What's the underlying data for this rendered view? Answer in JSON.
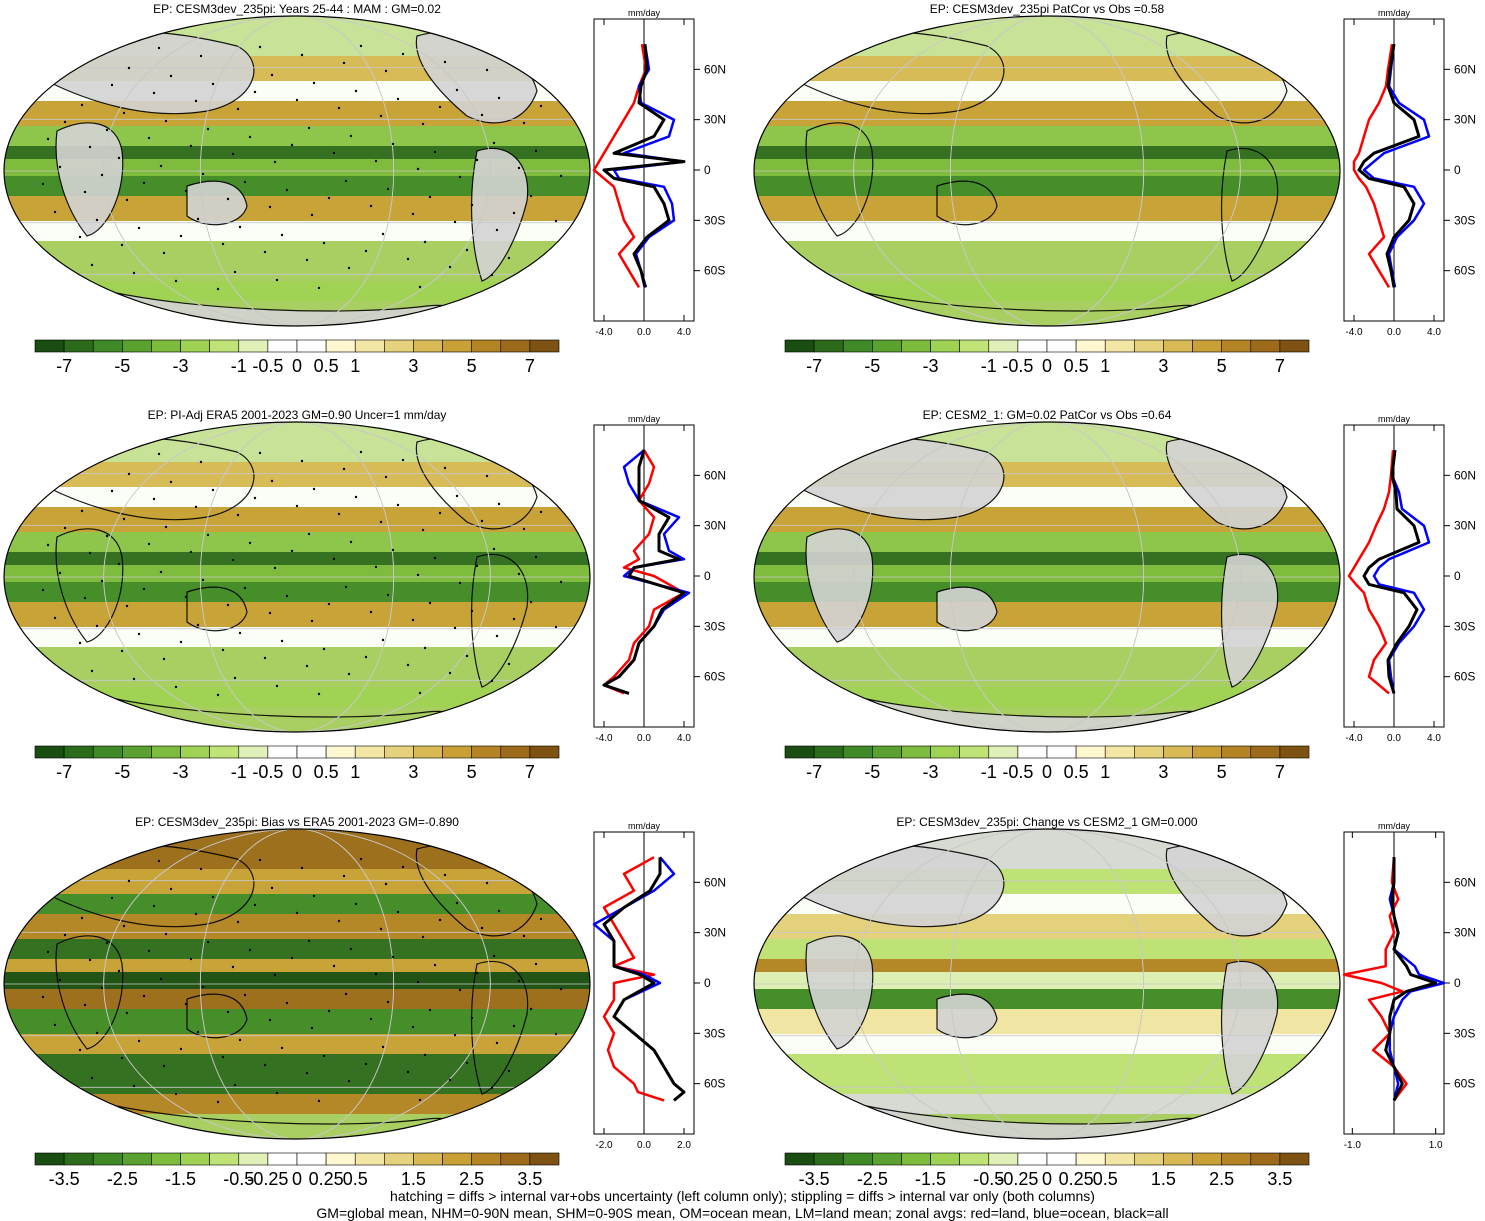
{
  "legend_colors": {
    "land": "#ff0000",
    "ocean": "#0000ff",
    "all": "#000000"
  },
  "zonal_axis": {
    "unit_label": "mm/day",
    "lat_ticks": [
      "60N",
      "30N",
      "0",
      "30S",
      "60S"
    ],
    "lat_values": [
      60,
      30,
      0,
      -30,
      -60
    ]
  },
  "colorbars": {
    "precip": {
      "labels": [
        "-7",
        "-5",
        "-3",
        "-1",
        "-0.5",
        "0",
        "0.5",
        "1",
        "3",
        "5",
        "7"
      ],
      "colors": [
        "#1a4d12",
        "#2d6b1c",
        "#3f8a26",
        "#5aa12f",
        "#7cbb3c",
        "#9fd253",
        "#c0e378",
        "#e0f0b8",
        "#ffffff",
        "#ffffff",
        "#fff7d0",
        "#f3e6a5",
        "#e6d17c",
        "#d8b955",
        "#c9a035",
        "#b48324",
        "#9c6a1a",
        "#7d5212"
      ]
    },
    "bias": {
      "labels": [
        "-3.5",
        "-2.5",
        "-1.5",
        "-0.5",
        "-0.25",
        "0",
        "0.25",
        "0.5",
        "1.5",
        "2.5",
        "3.5"
      ],
      "colors": [
        "#1a4d12",
        "#2d6b1c",
        "#3f8a26",
        "#5aa12f",
        "#7cbb3c",
        "#9fd253",
        "#c0e378",
        "#e0f0b8",
        "#ffffff",
        "#ffffff",
        "#fff7d0",
        "#f3e6a5",
        "#e6d17c",
        "#d8b955",
        "#c9a035",
        "#b48324",
        "#9c6a1a",
        "#7d5212"
      ]
    }
  },
  "panels": [
    {
      "title": "EP: CESM3dev_235pi: Years 25-44 : MAM : GM=0.02",
      "colorbar": "precip",
      "xticks": [
        "-4.0",
        "0.0",
        "4.0"
      ],
      "xtick_values": [
        -4,
        0,
        4
      ],
      "xlim": [
        -5,
        5
      ]
    },
    {
      "title": "EP: CESM3dev_235pi PatCor vs Obs =0.58",
      "colorbar": "precip",
      "xticks": [
        "-4.0",
        "0.0",
        "4.0"
      ],
      "xtick_values": [
        -4,
        0,
        4
      ],
      "xlim": [
        -5,
        5
      ]
    },
    {
      "title": "EP: PI-Adj ERA5 2001-2023 GM=0.90 Uncer=1 mm/day",
      "colorbar": "precip",
      "xticks": [
        "-4.0",
        "0.0",
        "4.0"
      ],
      "xtick_values": [
        -4,
        0,
        4
      ],
      "xlim": [
        -5,
        5
      ]
    },
    {
      "title": "EP: CESM2_1: GM=0.02 PatCor vs Obs =0.64",
      "colorbar": "precip",
      "xticks": [
        "-4.0",
        "0.0",
        "4.0"
      ],
      "xtick_values": [
        -4,
        0,
        4
      ],
      "xlim": [
        -5,
        5
      ]
    },
    {
      "title": "EP: CESM3dev_235pi: Bias vs ERA5 2001-2023 GM=-0.890",
      "colorbar": "bias",
      "xticks": [
        "-2.0",
        "0.0",
        "2.0"
      ],
      "xtick_values": [
        -2,
        0,
        2
      ],
      "xlim": [
        -2.5,
        2.5
      ]
    },
    {
      "title": "EP: CESM3dev_235pi: Change vs CESM2_1 GM=0.000",
      "colorbar": "bias",
      "xticks": [
        "-1.0",
        "1.0"
      ],
      "xtick_values": [
        -1,
        1
      ],
      "xlim": [
        -1.2,
        1.2
      ]
    }
  ],
  "chart_data": [
    {
      "type": "line",
      "panel": 1,
      "y_lat": [
        75,
        60,
        50,
        40,
        30,
        20,
        10,
        5,
        0,
        -5,
        -10,
        -20,
        -30,
        -40,
        -50,
        -60,
        -70
      ],
      "series": [
        {
          "values": [
            -0.2,
            0.2,
            -0.5,
            -1.0,
            -2.0,
            -3.0,
            -4.0,
            -4.5,
            -5.0,
            -4.0,
            -3.0,
            -2.5,
            -2.0,
            -1.0,
            -2.5,
            -1.5,
            -0.5
          ]
        },
        {
          "values": [
            0.1,
            0.5,
            -0.5,
            -0.3,
            3.0,
            2.5,
            -2.0,
            4.0,
            -3.0,
            -2.5,
            2.0,
            2.8,
            3.0,
            0.5,
            -0.8,
            -0.3,
            0.2
          ]
        },
        {
          "values": [
            0.1,
            0.3,
            -0.3,
            -0.5,
            2.0,
            1.0,
            -3.0,
            4.0,
            -4.0,
            -3.0,
            1.0,
            2.0,
            2.5,
            0.3,
            -1.0,
            -0.3,
            0.1
          ]
        }
      ]
    },
    {
      "type": "line",
      "panel": 2,
      "y_lat": [
        75,
        60,
        50,
        40,
        30,
        20,
        10,
        5,
        0,
        -5,
        -10,
        -20,
        -30,
        -40,
        -50,
        -60,
        -70
      ],
      "series": [
        {
          "values": [
            -0.2,
            -0.6,
            -0.8,
            -1.5,
            -2.5,
            -3.0,
            -3.5,
            -4.0,
            -4.0,
            -3.5,
            -2.8,
            -2.0,
            -1.5,
            -1.0,
            -2.5,
            -1.5,
            -0.5
          ]
        },
        {
          "values": [
            0.0,
            -0.3,
            -0.5,
            0.5,
            3.0,
            3.5,
            -1.0,
            -2.0,
            -3.0,
            -2.0,
            2.0,
            3.0,
            2.0,
            0.3,
            -0.5,
            -0.2,
            0.1
          ]
        },
        {
          "values": [
            0.0,
            -0.4,
            -0.6,
            0.0,
            2.0,
            2.5,
            -2.0,
            -3.0,
            -3.5,
            -2.5,
            1.0,
            2.0,
            1.5,
            0.0,
            -0.7,
            -0.3,
            0.0
          ]
        }
      ]
    },
    {
      "type": "line",
      "panel": 3,
      "y_lat": [
        75,
        65,
        55,
        45,
        35,
        25,
        15,
        10,
        5,
        0,
        -10,
        -20,
        -30,
        -40,
        -50,
        -60,
        -65,
        -70
      ],
      "series": [
        {
          "values": [
            0.0,
            1.0,
            0.5,
            -0.5,
            1.0,
            0.5,
            -1.0,
            -0.5,
            -2.0,
            1.0,
            4.0,
            1.0,
            0.5,
            -1.0,
            -1.5,
            -3.0,
            -4.0,
            -2.0
          ]
        },
        {
          "values": [
            0.0,
            -2.0,
            -1.5,
            -0.5,
            3.5,
            2.0,
            2.5,
            4.0,
            -1.0,
            -2.0,
            4.5,
            2.0,
            1.0,
            -0.5,
            -1.0,
            -2.5,
            -4.0,
            -1.5
          ]
        },
        {
          "values": [
            0.0,
            -0.5,
            -0.5,
            -0.5,
            2.5,
            1.5,
            1.5,
            3.5,
            -1.0,
            -1.5,
            4.0,
            1.8,
            1.0,
            -0.5,
            -1.0,
            -2.5,
            -4.0,
            -1.5
          ]
        }
      ]
    },
    {
      "type": "line",
      "panel": 4,
      "y_lat": [
        75,
        60,
        50,
        40,
        30,
        20,
        10,
        5,
        0,
        -5,
        -10,
        -20,
        -30,
        -40,
        -50,
        -60,
        -70
      ],
      "series": [
        {
          "values": [
            -0.1,
            -0.3,
            -0.5,
            -1.0,
            -1.8,
            -2.5,
            -3.5,
            -4.0,
            -4.5,
            -3.8,
            -3.0,
            -2.5,
            -1.5,
            -0.8,
            -2.0,
            -2.5,
            -0.5
          ]
        },
        {
          "values": [
            0.1,
            -0.2,
            0.5,
            0.8,
            3.0,
            3.5,
            -0.5,
            -1.5,
            -2.0,
            -1.5,
            2.0,
            3.0,
            2.0,
            0.5,
            -0.5,
            -0.3,
            0.0
          ]
        },
        {
          "values": [
            0.1,
            -0.2,
            0.2,
            0.3,
            2.0,
            2.5,
            -1.5,
            -2.5,
            -3.0,
            -2.5,
            1.0,
            2.3,
            1.5,
            0.3,
            -0.6,
            -0.5,
            0.0
          ]
        }
      ]
    },
    {
      "type": "line",
      "panel": 5,
      "y_lat": [
        75,
        65,
        55,
        45,
        35,
        25,
        15,
        10,
        5,
        0,
        -10,
        -20,
        -30,
        -40,
        -50,
        -60,
        -65,
        -70
      ],
      "series": [
        {
          "values": [
            0.5,
            -1.0,
            -0.5,
            -2.0,
            -1.5,
            -1.0,
            -0.5,
            -1.5,
            0.5,
            -1.5,
            -1.5,
            -2.0,
            -1.5,
            -1.8,
            -1.5,
            -0.5,
            -0.3,
            1.0
          ]
        },
        {
          "values": [
            0.8,
            1.5,
            0.5,
            -1.0,
            -2.5,
            -1.5,
            -1.5,
            -1.5,
            0.0,
            0.8,
            -1.0,
            -1.5,
            -0.5,
            0.5,
            1.0,
            1.5,
            2.0,
            1.5
          ]
        },
        {
          "values": [
            0.8,
            0.8,
            0.3,
            -1.0,
            -2.0,
            -1.5,
            -1.5,
            -1.5,
            -0.2,
            0.5,
            -1.0,
            -1.5,
            -0.5,
            0.5,
            1.0,
            1.5,
            2.0,
            1.5
          ]
        }
      ]
    },
    {
      "type": "line",
      "panel": 6,
      "y_lat": [
        75,
        60,
        50,
        40,
        30,
        20,
        10,
        5,
        0,
        -5,
        -10,
        -20,
        -30,
        -40,
        -50,
        -60,
        -70
      ],
      "series": [
        {
          "values": [
            0.0,
            -0.05,
            0.1,
            -0.1,
            0.0,
            -0.2,
            -0.2,
            -1.2,
            -0.3,
            0.2,
            -0.6,
            -0.3,
            -0.1,
            -0.5,
            0.0,
            0.3,
            0.0
          ]
        },
        {
          "values": [
            0.0,
            0.0,
            -0.1,
            0.0,
            0.1,
            0.0,
            0.5,
            0.6,
            1.2,
            0.4,
            0.2,
            0.0,
            -0.1,
            -0.1,
            0.0,
            0.1,
            0.0
          ]
        },
        {
          "values": [
            0.0,
            0.0,
            -0.05,
            0.0,
            0.1,
            0.0,
            0.3,
            0.4,
            1.0,
            0.3,
            0.0,
            -0.1,
            -0.1,
            -0.2,
            0.0,
            0.2,
            0.0
          ]
        }
      ]
    }
  ],
  "footer": {
    "line1": "hatching = diffs > internal var+obs uncertainty (left column only); stippling = diffs > internal var only (both columns)",
    "line2": "GM=global mean, NHM=0-90N mean, SHM=0-90S mean, OM=ocean mean, LM=land mean; zonal avgs: red=land, blue=ocean, black=all"
  }
}
